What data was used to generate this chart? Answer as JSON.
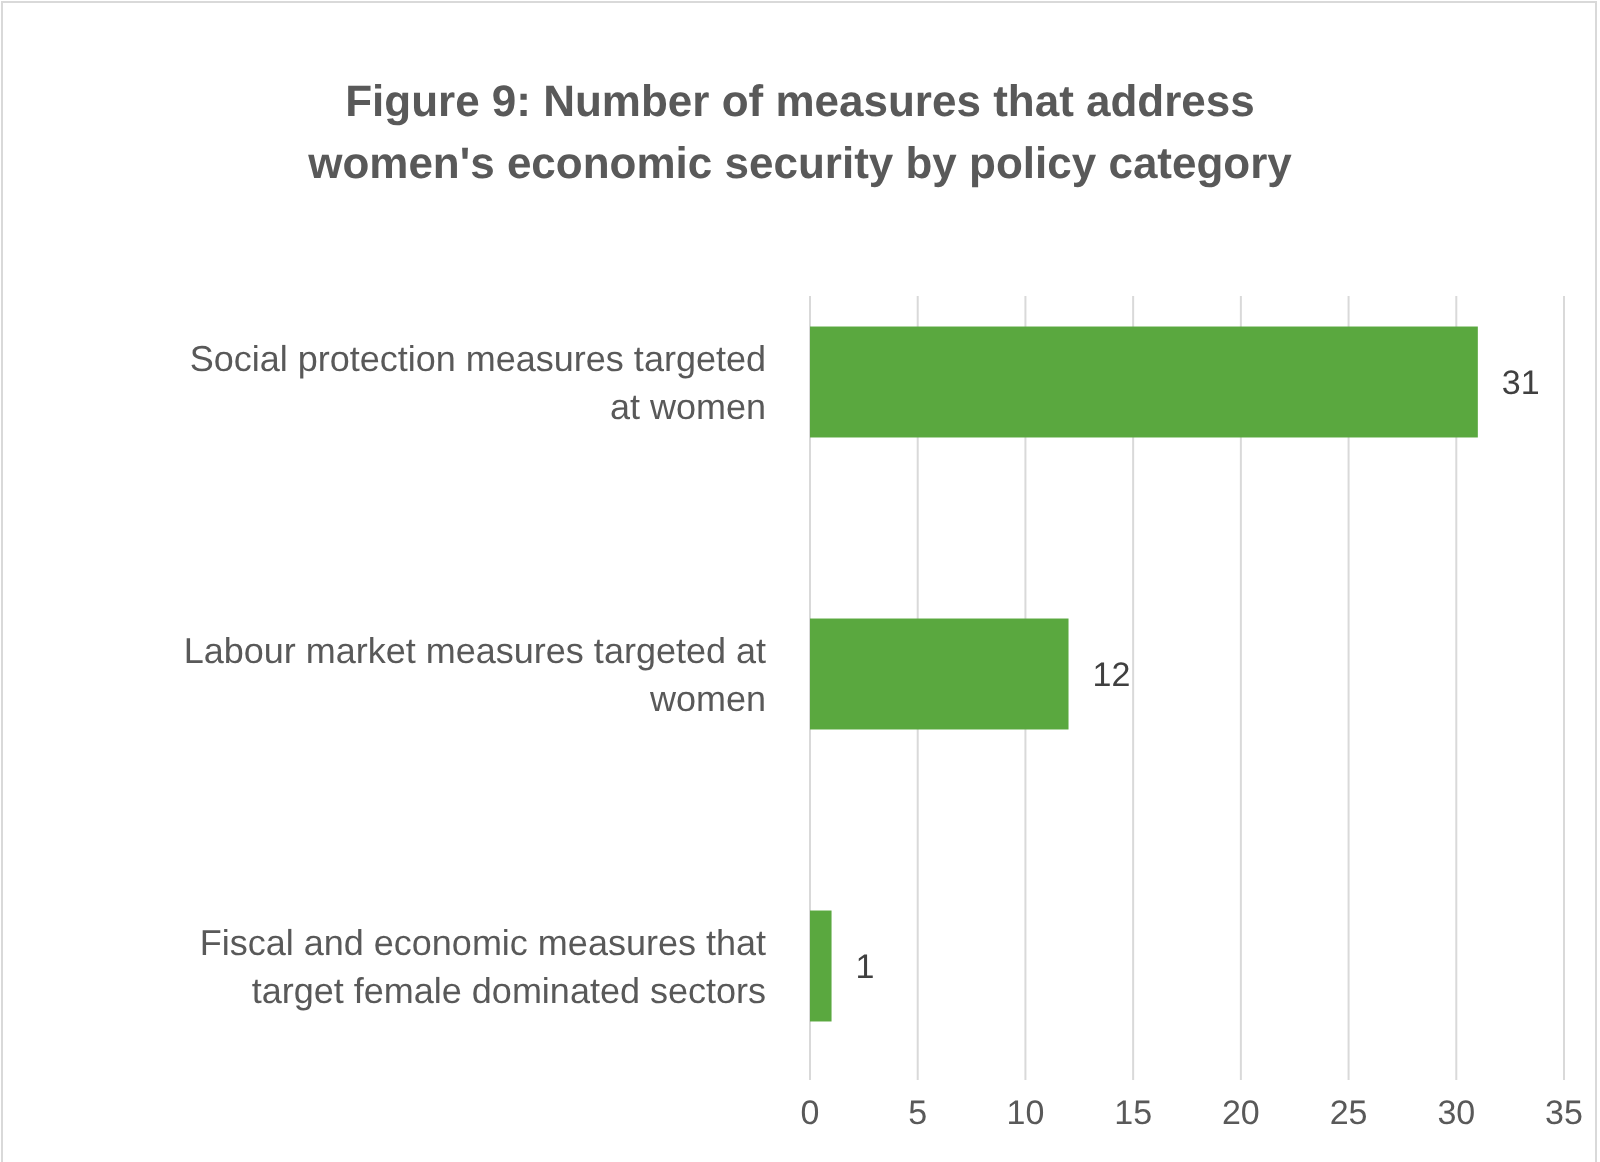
{
  "chart_data": {
    "type": "bar",
    "orientation": "horizontal",
    "title": "Figure 9: Number of measures that address women's economic security by policy category",
    "categories": [
      "Social protection measures targeted at women",
      "Labour market measures targeted at women",
      "Fiscal and economic measures that target female dominated sectors"
    ],
    "values": [
      31,
      12,
      1
    ],
    "color": "#5aa83f",
    "xlim": [
      0,
      35
    ],
    "xticks": [
      0,
      5,
      10,
      15,
      20,
      25,
      30,
      35
    ],
    "grid": "x",
    "data_labels": true
  }
}
